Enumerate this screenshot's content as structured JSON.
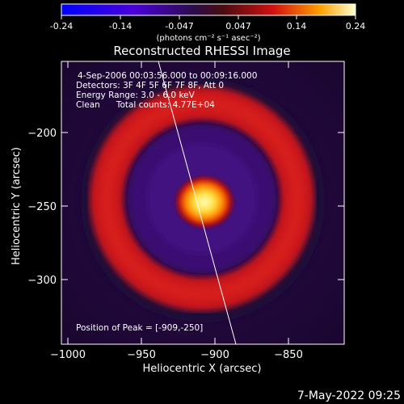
{
  "colorbar": {
    "ticks": [
      "-0.24",
      "-0.14",
      "-0.047",
      "0.047",
      "0.14",
      "0.24"
    ],
    "units": "(photons cm⁻² s⁻¹ asec⁻²)"
  },
  "image": {
    "title": "Reconstructed RHESSI Image",
    "annotations": [
      "4-Sep-2006 00:03:56.000 to 00:09:16.000",
      "Detectors: 3F 4F 5F 6F 7F 8F, Att 0",
      "Energy Range: 3.0 - 6.0 keV",
      "Clean      Total counts: 4.77E+04"
    ],
    "peak": "Position of Peak = [-909,-250]"
  },
  "axes": {
    "xlabel": "Heliocentric X (arcsec)",
    "ylabel": "Heliocentric Y (arcsec)",
    "xticks": [
      "−1000",
      "−950",
      "−900",
      "−850"
    ],
    "yticks": [
      "−200",
      "−250",
      "−300"
    ]
  },
  "footer": {
    "timestamp": "7-May-2022 09:25"
  },
  "colors": {
    "background": "#000000",
    "outer": "#2b0c4a",
    "ring": "#c8161a",
    "inner": "#3a1172",
    "peak_core": "#fff6b0",
    "limb": "#ffffff"
  }
}
